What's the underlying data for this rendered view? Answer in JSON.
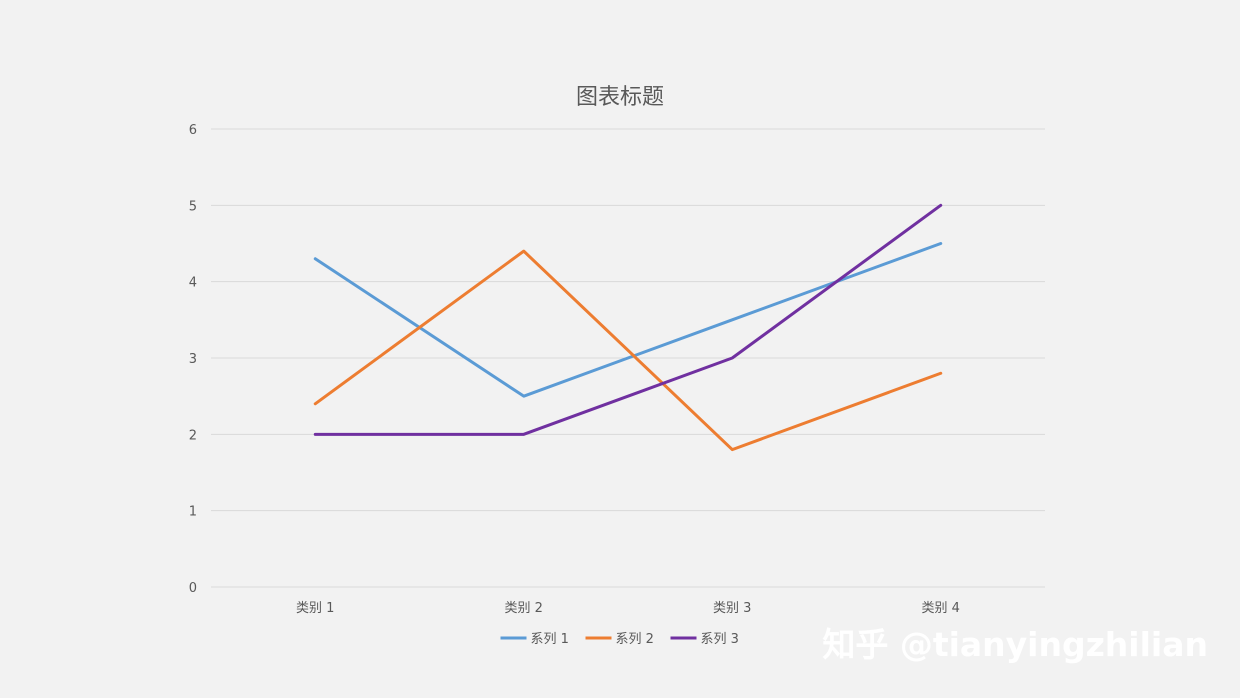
{
  "chart_data": {
    "type": "line",
    "title": "图表标题",
    "xlabel": "",
    "ylabel": "",
    "categories": [
      "类别 1",
      "类别 2",
      "类别 3",
      "类别 4"
    ],
    "y_ticks": [
      "0",
      "1",
      "2",
      "3",
      "4",
      "5",
      "6"
    ],
    "ylim": [
      0,
      6
    ],
    "grid": true,
    "legend_position": "bottom",
    "series": [
      {
        "name": "系列 1",
        "values": [
          4.3,
          2.5,
          3.5,
          4.5
        ],
        "color": "#5b9bd5"
      },
      {
        "name": "系列 2",
        "values": [
          2.4,
          4.4,
          1.8,
          2.8
        ],
        "color": "#ed7d31"
      },
      {
        "name": "系列 3",
        "values": [
          2.0,
          2.0,
          3.0,
          5.0
        ],
        "color": "#7030a0"
      }
    ]
  },
  "watermark": {
    "text": "知乎 @tianyingzhilian"
  },
  "colors": {
    "background": "#f2f2f2",
    "gridline": "#d9d9d9",
    "text": "#595959"
  }
}
